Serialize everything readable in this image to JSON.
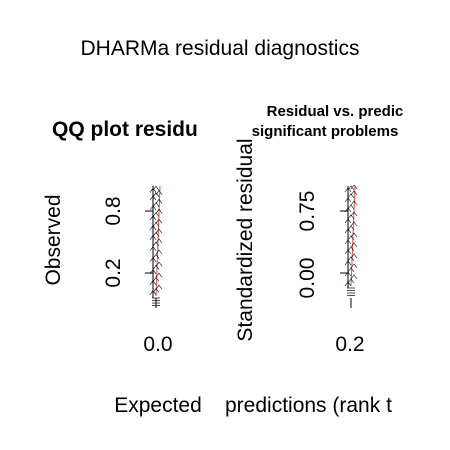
{
  "title": "DHARMa residual diagnostics",
  "chart_data": [
    {
      "type": "scatter",
      "title": "QQ plot residu",
      "xlabel": "Expected",
      "ylabel": "Observed",
      "x_ticks": [
        "0.0"
      ],
      "y_ticks": [
        "0.2",
        "0.8"
      ],
      "xlim": [
        0.0,
        0.02
      ],
      "ylim": [
        0.0,
        1.0
      ],
      "points_x": [
        0.0,
        0.0,
        0.0,
        0.0,
        0.0,
        0.0,
        0.0,
        0.0,
        0.0,
        0.0,
        0.0,
        0.0,
        0.0,
        0.0,
        0.0,
        0.0,
        0.0,
        0.0,
        0.0,
        0.0,
        0.0,
        0.0,
        0.0,
        0.0,
        0.0,
        0.0,
        0.0,
        0.0,
        0.0,
        0.0,
        0.0,
        0.0
      ],
      "points_y": [
        0.03,
        0.05,
        0.08,
        0.12,
        0.15,
        0.19,
        0.22,
        0.26,
        0.29,
        0.33,
        0.36,
        0.4,
        0.43,
        0.47,
        0.5,
        0.53,
        0.56,
        0.59,
        0.62,
        0.65,
        0.68,
        0.71,
        0.74,
        0.77,
        0.8,
        0.83,
        0.86,
        0.89,
        0.92,
        0.94,
        0.96,
        0.98
      ],
      "reference_line_color": "#d9534f",
      "point_color": "#000000"
    },
    {
      "type": "scatter",
      "title": "Residual vs. predic",
      "subtitle": "significant problems",
      "xlabel": "predictions (rank t",
      "ylabel": "Standardized residual",
      "x_ticks": [
        "0.2"
      ],
      "y_ticks": [
        "0.00",
        "0.75"
      ],
      "xlim": [
        0.195,
        0.205
      ],
      "ylim": [
        0.0,
        1.0
      ],
      "points_x": [
        0.2,
        0.2,
        0.2,
        0.2,
        0.2,
        0.2,
        0.2,
        0.2,
        0.2,
        0.2,
        0.2,
        0.2,
        0.2,
        0.2,
        0.2,
        0.2,
        0.2,
        0.2,
        0.2,
        0.2,
        0.2,
        0.2,
        0.2,
        0.2,
        0.2,
        0.2,
        0.2,
        0.2,
        0.2,
        0.2
      ],
      "points_y": [
        0.02,
        0.05,
        0.09,
        0.12,
        0.16,
        0.2,
        0.23,
        0.27,
        0.3,
        0.34,
        0.37,
        0.41,
        0.44,
        0.48,
        0.51,
        0.55,
        0.58,
        0.62,
        0.65,
        0.69,
        0.72,
        0.76,
        0.79,
        0.83,
        0.86,
        0.9,
        0.93,
        0.96,
        0.98,
        0.99
      ],
      "reference_line_color": "#d9534f",
      "point_color": "#000000"
    }
  ]
}
